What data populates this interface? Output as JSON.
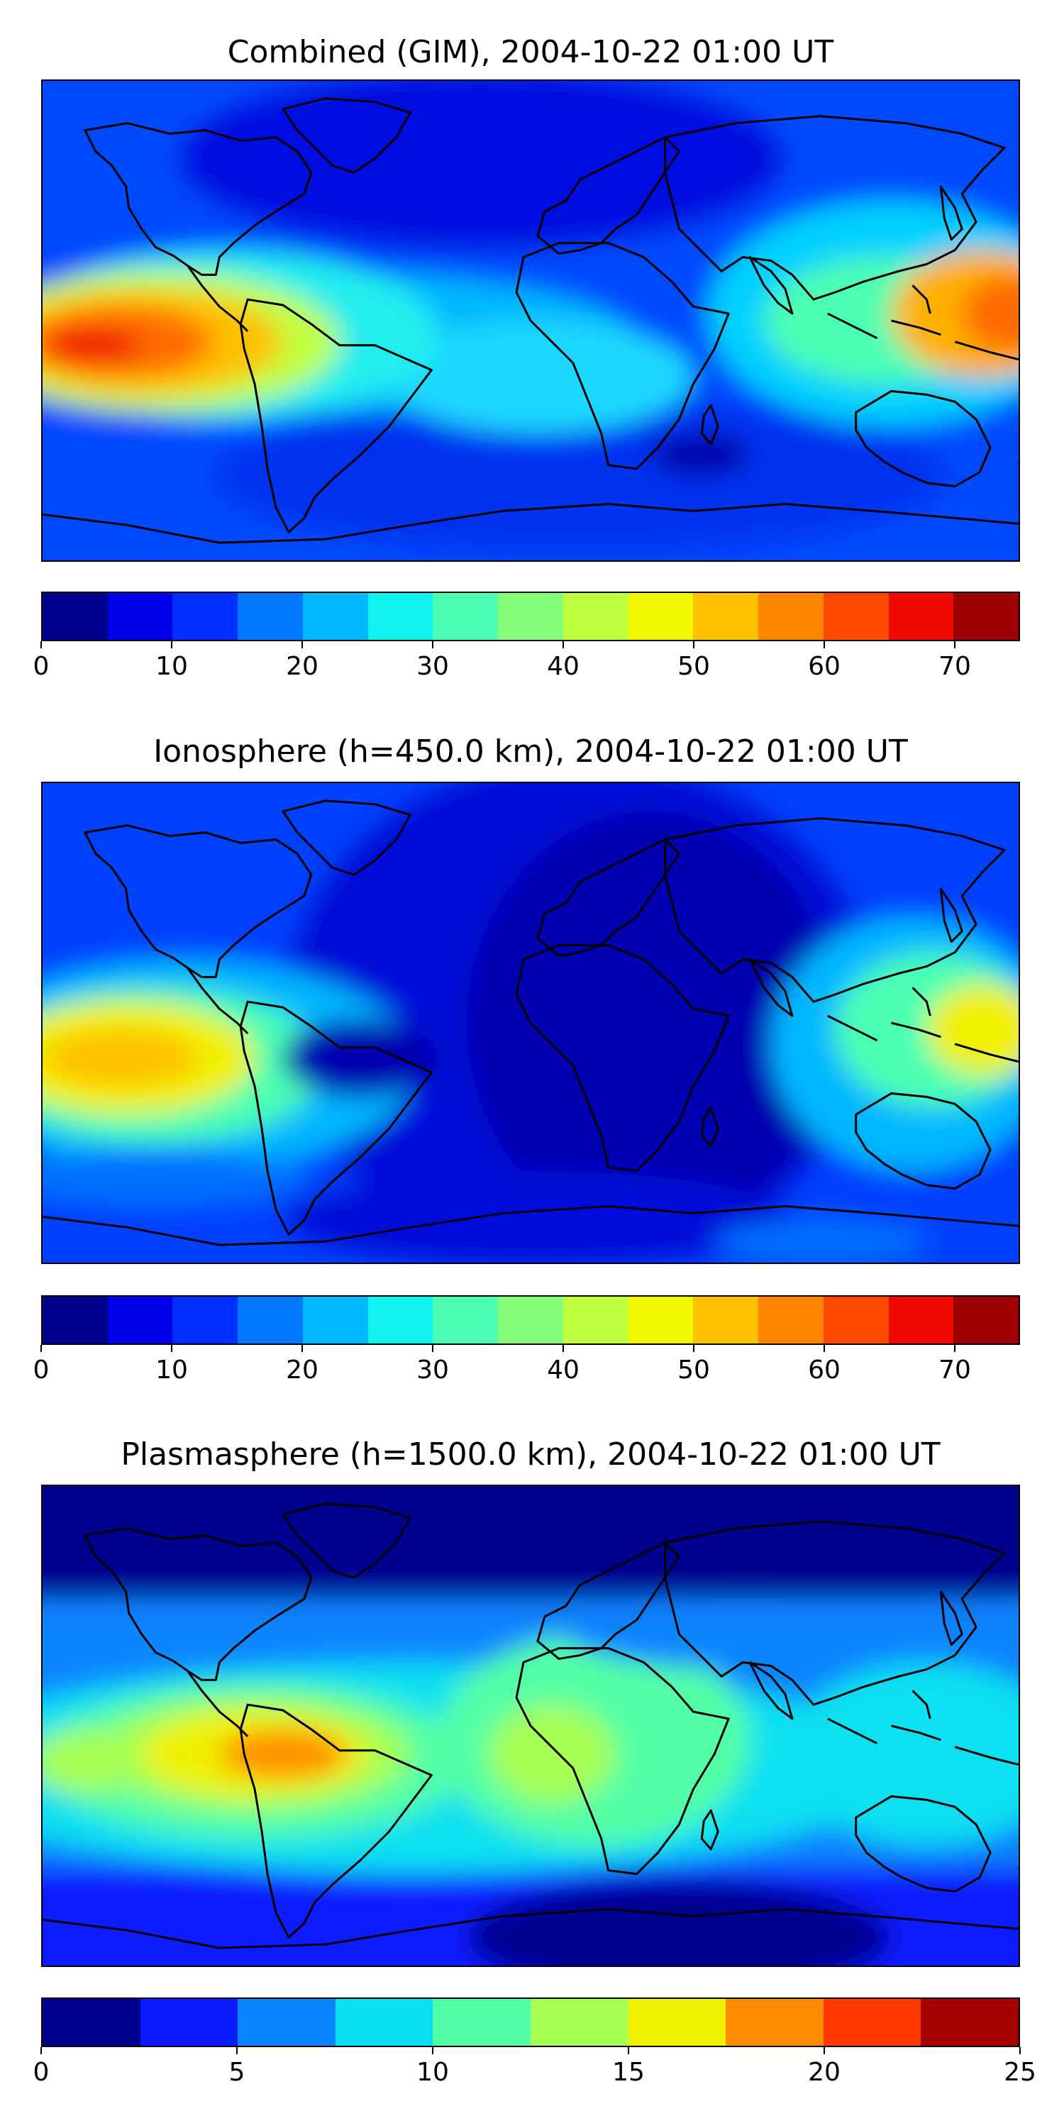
{
  "panels": [
    {
      "title": "Combined (GIM), 2004-10-22 01:00 UT",
      "field": "combined",
      "colorbar": {
        "colors": [
          "#00008f",
          "#0000e8",
          "#0030ff",
          "#0078ff",
          "#00b8ff",
          "#12f2ee",
          "#4cffb2",
          "#85ff7a",
          "#bfff40",
          "#f0f800",
          "#ffc000",
          "#ff8400",
          "#ff4a00",
          "#ee0a00",
          "#9c0000"
        ],
        "ticks": [
          0,
          10,
          20,
          30,
          40,
          50,
          60,
          70
        ],
        "vmin": 0,
        "vmax": 75
      }
    },
    {
      "title": "Ionosphere  (h=450.0 km), 2004-10-22 01:00 UT",
      "field": "ionosphere",
      "colorbar": {
        "colors": [
          "#00008f",
          "#0000e8",
          "#0030ff",
          "#0078ff",
          "#00b8ff",
          "#12f2ee",
          "#4cffb2",
          "#85ff7a",
          "#bfff40",
          "#f0f800",
          "#ffc000",
          "#ff8400",
          "#ff4a00",
          "#ee0a00",
          "#9c0000"
        ],
        "ticks": [
          0,
          10,
          20,
          30,
          40,
          50,
          60,
          70
        ],
        "vmin": 0,
        "vmax": 75
      }
    },
    {
      "title": "Plasmasphere (h=1500.0 km), 2004-10-22 01:00 UT",
      "field": "plasmasphere",
      "colorbar": {
        "colors": [
          "#00008f",
          "#0a1cff",
          "#0a84ff",
          "#0ae0f0",
          "#52ffa6",
          "#a6ff52",
          "#f0f000",
          "#ff8c00",
          "#ff3800",
          "#a40000"
        ],
        "ticks": [
          0,
          5,
          10,
          15,
          20,
          25
        ],
        "vmin": 0,
        "vmax": 25
      }
    }
  ]
}
